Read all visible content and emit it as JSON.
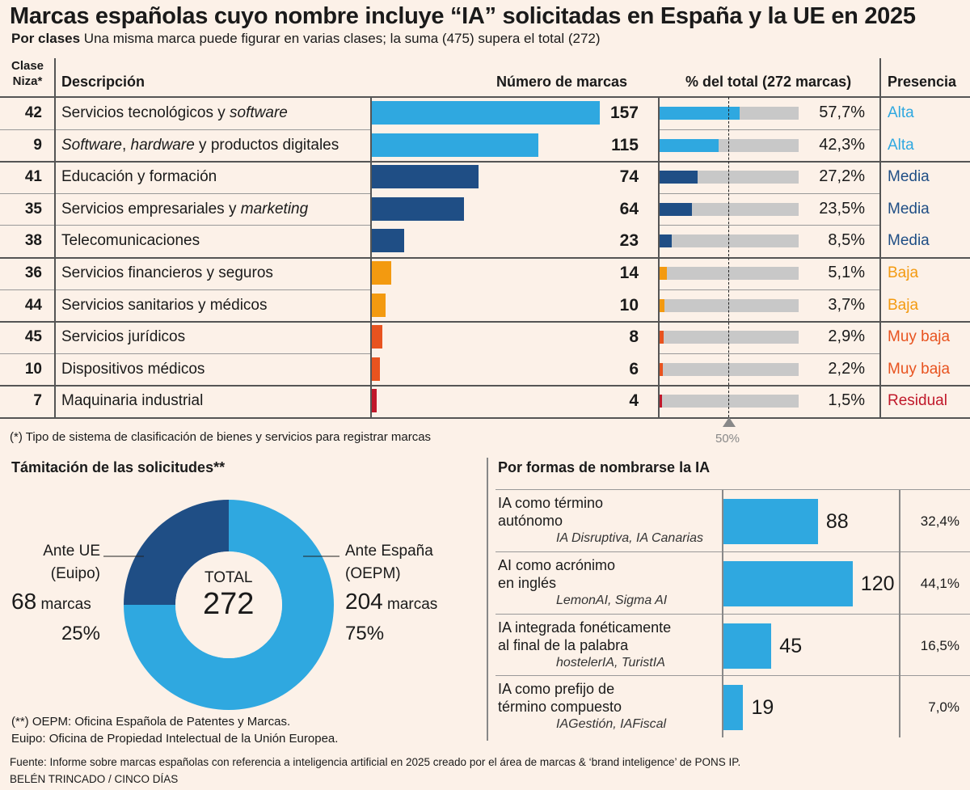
{
  "title": "Marcas españolas cuyo nombre incluye “IA” solicitadas en España y la UE en 2025",
  "subtitle_bold": "Por clases",
  "subtitle": "Una misma marca puede figurar en varias clases; la suma (475) supera el total (272)",
  "colors": {
    "background": "#fcf1e8",
    "Alta": "#2fa8e0",
    "Media": "#1f4e85",
    "Baja": "#f39a10",
    "Muy baja": "#e8531f",
    "Residual": "#c0182a",
    "track": "#c8c8c8"
  },
  "chart_data": [
    {
      "type": "table",
      "title": "Por clases",
      "columns": [
        "Clase Niza*",
        "Descripción",
        "Número de marcas",
        "% del total (272 marcas)",
        "Presencia"
      ],
      "reference_line": {
        "value": 50,
        "label": "50%"
      },
      "rows": [
        {
          "clase": "42",
          "desc": [
            {
              "t": "Servicios tecnológicos y "
            },
            {
              "t": "software",
              "i": true
            }
          ],
          "value": 157,
          "pct": 57.7,
          "pct_label": "57,7%",
          "presencia": "Alta"
        },
        {
          "clase": "9",
          "desc": [
            {
              "t": "Software",
              "i": true
            },
            {
              "t": ", "
            },
            {
              "t": "hardware",
              "i": true
            },
            {
              "t": " y productos digitales"
            }
          ],
          "value": 115,
          "pct": 42.3,
          "pct_label": "42,3%",
          "presencia": "Alta"
        },
        {
          "clase": "41",
          "desc": [
            {
              "t": "Educación y formación"
            }
          ],
          "value": 74,
          "pct": 27.2,
          "pct_label": "27,2%",
          "presencia": "Media"
        },
        {
          "clase": "35",
          "desc": [
            {
              "t": "Servicios empresariales y "
            },
            {
              "t": "marketing",
              "i": true
            }
          ],
          "value": 64,
          "pct": 23.5,
          "pct_label": "23,5%",
          "presencia": "Media"
        },
        {
          "clase": "38",
          "desc": [
            {
              "t": "Telecomunicaciones"
            }
          ],
          "value": 23,
          "pct": 8.5,
          "pct_label": "8,5%",
          "presencia": "Media"
        },
        {
          "clase": "36",
          "desc": [
            {
              "t": "Servicios financieros y seguros"
            }
          ],
          "value": 14,
          "pct": 5.1,
          "pct_label": "5,1%",
          "presencia": "Baja"
        },
        {
          "clase": "44",
          "desc": [
            {
              "t": "Servicios sanitarios y médicos"
            }
          ],
          "value": 10,
          "pct": 3.7,
          "pct_label": "3,7%",
          "presencia": "Baja"
        },
        {
          "clase": "45",
          "desc": [
            {
              "t": "Servicios jurídicos"
            }
          ],
          "value": 8,
          "pct": 2.9,
          "pct_label": "2,9%",
          "presencia": "Muy baja"
        },
        {
          "clase": "10",
          "desc": [
            {
              "t": "Dispositivos médicos"
            }
          ],
          "value": 6,
          "pct": 2.2,
          "pct_label": "2,2%",
          "presencia": "Muy baja"
        },
        {
          "clase": "7",
          "desc": [
            {
              "t": "Maquinaria industrial"
            }
          ],
          "value": 4,
          "pct": 1.5,
          "pct_label": "1,5%",
          "presencia": "Residual"
        }
      ]
    },
    {
      "type": "pie",
      "title": "Támitación de las solicitudes**",
      "center_label": "TOTAL",
      "total": "272",
      "slices": [
        {
          "label1": "Ante España",
          "label2": "(OEPM)",
          "value": 204,
          "unit": "marcas",
          "pct": "75%",
          "color": "#2fa8e0"
        },
        {
          "label1": "Ante UE",
          "label2": "(Euipo)",
          "value": 68,
          "unit": "marcas",
          "pct": "25%",
          "color": "#1f4e85"
        }
      ]
    },
    {
      "type": "bar",
      "title": "Por formas de nombrarse la IA",
      "rows": [
        {
          "l1": "IA como término",
          "l2": "autónomo",
          "ex": "IA Disruptiva, IA Canarias",
          "value": 88,
          "pct": "32,4%"
        },
        {
          "l1": "AI como acrónimo",
          "l2": "en inglés",
          "ex": "LemonAI, Sigma AI",
          "value": 120,
          "pct": "44,1%"
        },
        {
          "l1": "IA integrada fonéticamente",
          "l2": "al final de la palabra",
          "ex": "hostelerIA, TuristIA",
          "value": 45,
          "pct": "16,5%"
        },
        {
          "l1": "IA como prefijo de",
          "l2": "término compuesto",
          "ex": "IAGestión, IAFiscal",
          "value": 19,
          "pct": "7,0%"
        }
      ]
    }
  ],
  "notes": {
    "niza": "(*) Tipo de sistema de clasificación de bienes y servicios para registrar marcas",
    "oepm": "(**) OEPM: Oficina Española de Patentes y Marcas.",
    "euipo": "Euipo: Oficina de Propiedad Intelectual de la Unión Europea.",
    "source": "Fuente: Informe sobre marcas españolas con referencia a inteligencia artificial en 2025 creado por el área de marcas & ‘brand inteligence’ de PONS IP.",
    "credit": "BELÉN TRINCADO / CINCO DÍAS"
  }
}
